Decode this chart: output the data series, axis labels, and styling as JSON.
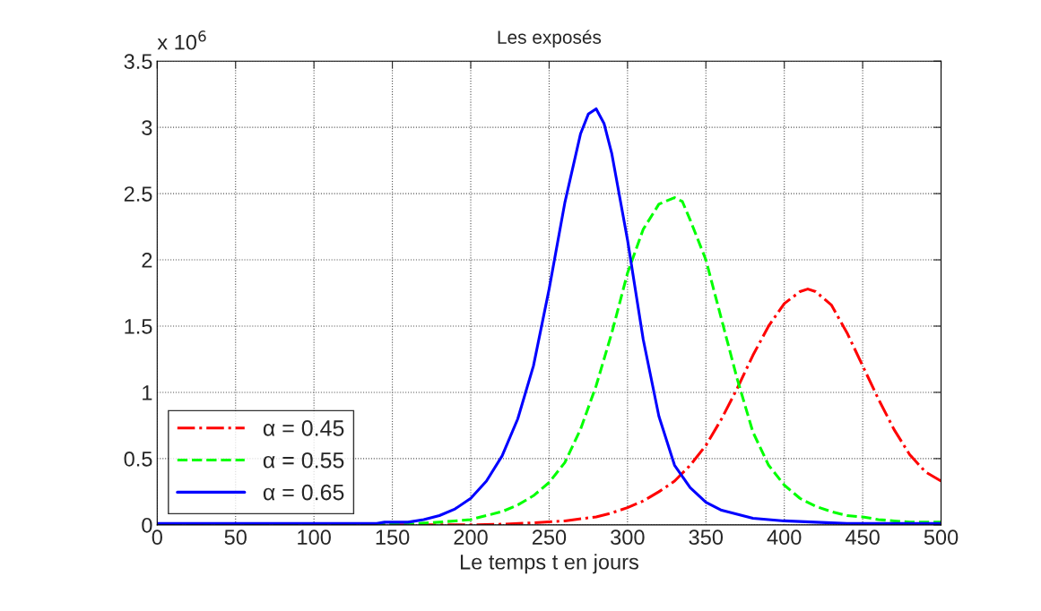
{
  "chart_data": {
    "type": "line",
    "title": "Les exposés",
    "xlabel": "Le temps t en jours",
    "annotations": [
      "x 10$^{6}$"
    ],
    "xlim": [
      0,
      500
    ],
    "xticks": [
      0,
      50,
      100,
      150,
      200,
      250,
      300,
      350,
      400,
      450,
      500
    ],
    "ylim": [
      0,
      3.5
    ],
    "yticks": [
      0,
      0.5,
      1,
      1.5,
      2,
      2.5,
      3,
      3.5
    ],
    "grid": true,
    "legend": "bottom left",
    "marker": "none",
    "series": [
      {
        "name": "α = 0.45",
        "color": "#ff0000",
        "line_style": "dashdot",
        "x": [
          0,
          100,
          200,
          220,
          240,
          260,
          280,
          290,
          300,
          310,
          320,
          330,
          340,
          350,
          360,
          370,
          380,
          390,
          400,
          410,
          415,
          420,
          430,
          440,
          450,
          460,
          470,
          480,
          490,
          500
        ],
        "values": [
          0,
          0,
          0,
          0.005,
          0.015,
          0.03,
          0.06,
          0.09,
          0.13,
          0.18,
          0.25,
          0.33,
          0.45,
          0.6,
          0.8,
          1.03,
          1.28,
          1.5,
          1.67,
          1.76,
          1.78,
          1.76,
          1.66,
          1.45,
          1.2,
          0.95,
          0.72,
          0.53,
          0.4,
          0.33
        ]
      },
      {
        "name": "α = 0.55",
        "color": "#00ff00",
        "line_style": "dashed",
        "x": [
          0,
          100,
          160,
          180,
          200,
          210,
          220,
          230,
          240,
          250,
          260,
          270,
          280,
          290,
          300,
          310,
          320,
          330,
          335,
          340,
          350,
          360,
          370,
          380,
          390,
          400,
          410,
          420,
          430,
          440,
          450,
          460,
          470,
          480,
          500
        ],
        "values": [
          0,
          0,
          0.005,
          0.02,
          0.04,
          0.07,
          0.1,
          0.15,
          0.22,
          0.32,
          0.47,
          0.72,
          1.05,
          1.45,
          1.9,
          2.23,
          2.42,
          2.47,
          2.44,
          2.3,
          2.0,
          1.55,
          1.1,
          0.7,
          0.45,
          0.3,
          0.2,
          0.14,
          0.1,
          0.07,
          0.06,
          0.04,
          0.03,
          0.02,
          0.02
        ]
      },
      {
        "name": "α = 0.65",
        "color": "#0000ff",
        "line_style": "solid",
        "x": [
          0,
          100,
          140,
          145,
          160,
          170,
          180,
          190,
          200,
          210,
          220,
          230,
          240,
          250,
          260,
          270,
          275,
          280,
          285,
          290,
          300,
          310,
          320,
          330,
          340,
          350,
          360,
          370,
          380,
          390,
          400,
          420,
          440,
          500
        ],
        "values": [
          0.01,
          0.01,
          0.01,
          0.02,
          0.02,
          0.04,
          0.07,
          0.12,
          0.2,
          0.33,
          0.52,
          0.8,
          1.2,
          1.78,
          2.43,
          2.95,
          3.1,
          3.14,
          3.03,
          2.8,
          2.15,
          1.4,
          0.82,
          0.45,
          0.28,
          0.17,
          0.11,
          0.08,
          0.05,
          0.04,
          0.03,
          0.02,
          0.01,
          0.01
        ]
      }
    ]
  }
}
